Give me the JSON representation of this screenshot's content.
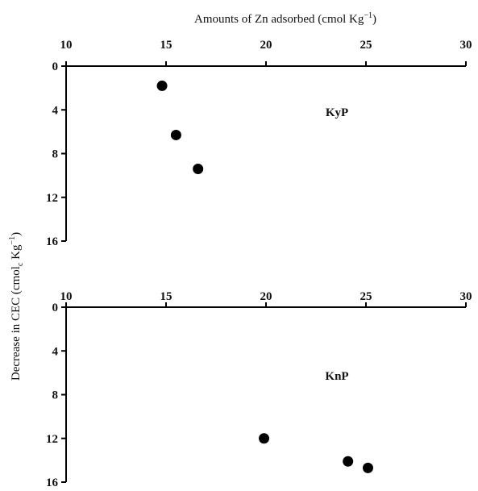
{
  "chart_data": [
    {
      "type": "scatter",
      "panel_label": "KyP",
      "xlabel": "Amounts of Zn adsorbed (cmol Kg",
      "xlabel_sup": "−1",
      "xlabel_end": ")",
      "xlim": [
        10,
        30
      ],
      "ylim": [
        0,
        16
      ],
      "x_ticks": [
        10,
        15,
        20,
        25,
        30
      ],
      "y_ticks": [
        0,
        4,
        8,
        12,
        16
      ],
      "y_inverted": true,
      "x_axis_position": "top",
      "points": [
        {
          "x": 14.8,
          "y": 1.8
        },
        {
          "x": 15.5,
          "y": 6.3
        },
        {
          "x": 16.6,
          "y": 9.4
        }
      ]
    },
    {
      "type": "scatter",
      "panel_label": "KnP",
      "xlim": [
        10,
        30
      ],
      "ylim": [
        0,
        16
      ],
      "x_ticks": [
        10,
        15,
        20,
        25,
        30
      ],
      "y_ticks": [
        0,
        4,
        8,
        12,
        16
      ],
      "y_inverted": true,
      "x_axis_position": "top",
      "points": [
        {
          "x": 19.9,
          "y": 12.0
        },
        {
          "x": 24.1,
          "y": 14.1
        },
        {
          "x": 25.1,
          "y": 14.7
        }
      ]
    }
  ],
  "shared_ylabel": {
    "main": "Decrease in CEC (cmol",
    "sub": "c",
    "mid": " Kg",
    "sup": "−1",
    "end": ")"
  },
  "colors": {
    "marker": "#000000",
    "axis": "#000000"
  }
}
